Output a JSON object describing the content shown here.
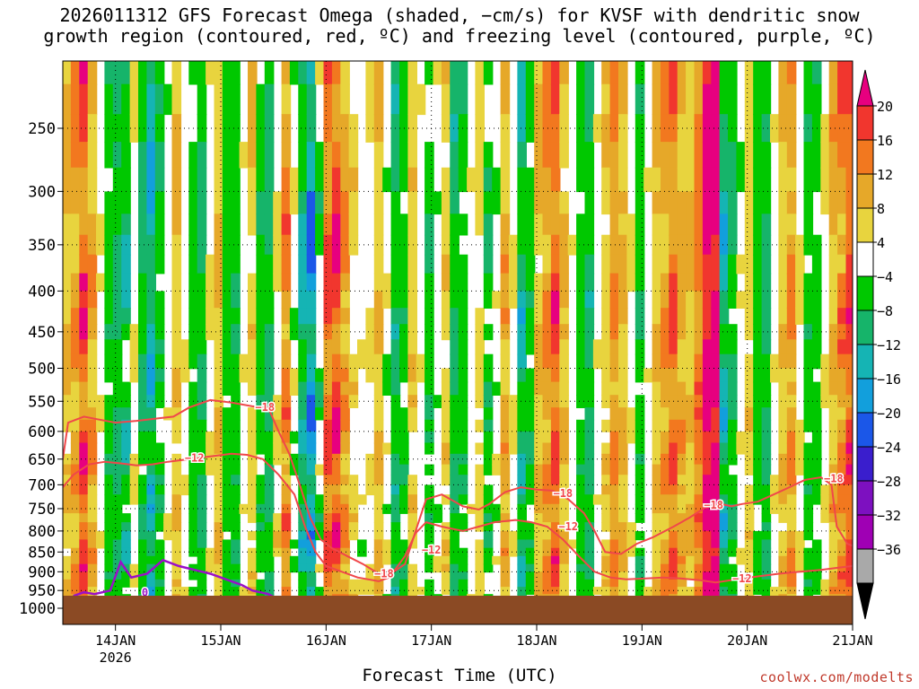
{
  "chart_data": {
    "type": "heatmap",
    "title_line1": "2026011312 GFS Forecast Omega (shaded, −cm/s) for KVSF with dendritic snow",
    "title_line2": "growth region (contoured, red, ºC) and freezing level (contoured, purple, ºC)",
    "xlabel": "Forecast Time (UTC)",
    "credit": "coolwx.com/modelts",
    "ylabel": "",
    "y_axis": {
      "type": "pressure (hPa)",
      "range": [
        1000,
        200
      ],
      "ticks": [
        250,
        300,
        350,
        400,
        450,
        500,
        550,
        600,
        650,
        700,
        750,
        800,
        850,
        900,
        950,
        1000
      ]
    },
    "x_axis": {
      "range_days": [
        13.5,
        21
      ],
      "ticks": [
        {
          "day": 14,
          "label": "14JAN",
          "sublabel": "2026"
        },
        {
          "day": 15,
          "label": "15JAN",
          "sublabel": ""
        },
        {
          "day": 16,
          "label": "16JAN",
          "sublabel": ""
        },
        {
          "day": 17,
          "label": "17JAN",
          "sublabel": ""
        },
        {
          "day": 18,
          "label": "18JAN",
          "sublabel": ""
        },
        {
          "day": 19,
          "label": "19JAN",
          "sublabel": ""
        },
        {
          "day": 20,
          "label": "20JAN",
          "sublabel": ""
        },
        {
          "day": 21,
          "label": "21JAN",
          "sublabel": ""
        }
      ]
    },
    "colorbar": {
      "levels": [
        "20",
        "16",
        "12",
        "8",
        "4",
        "−4",
        "−8",
        "−12",
        "−16",
        "−20",
        "−24",
        "−28",
        "−32",
        "−36"
      ],
      "colors": [
        "#e7007f",
        "#f1362e",
        "#f2781f",
        "#e6a829",
        "#e8d43e",
        "#ffffff",
        "#00c800",
        "#16b46a",
        "#15b4b4",
        "#129fdc",
        "#1b57e8",
        "#3a1ecd",
        "#7d10c0",
        "#9f00b4",
        "#a9a9a9",
        "#000000"
      ]
    },
    "contour_labels": {
      "dgz_cold": "−18",
      "dgz_warm": "−12",
      "freezing": "0"
    },
    "ground_color": "#8b4a24",
    "dgz_color": "#f0474a",
    "freezing_color": "#9a10c8",
    "columns": [
      {
        "t": 13.5,
        "wmin": 2,
        "wmax": 10
      },
      {
        "t": 13.58,
        "wmin": 2,
        "wmax": 14
      },
      {
        "t": 13.66,
        "wmin": 4,
        "wmax": 22
      },
      {
        "t": 13.74,
        "wmin": 2,
        "wmax": 14
      },
      {
        "t": 13.82,
        "wmin": -2,
        "wmax": 4
      },
      {
        "t": 13.9,
        "wmin": -10,
        "wmax": -4
      },
      {
        "t": 13.98,
        "wmin": -14,
        "wmax": -6
      },
      {
        "t": 14.06,
        "wmin": -20,
        "wmax": -4
      },
      {
        "t": 14.14,
        "wmin": -6,
        "wmax": 6
      },
      {
        "t": 14.22,
        "wmin": -14,
        "wmax": -4
      },
      {
        "t": 14.3,
        "wmin": -22,
        "wmax": -8
      },
      {
        "t": 14.38,
        "wmin": -10,
        "wmax": -4
      },
      {
        "t": 14.46,
        "wmin": -8,
        "wmax": 4
      },
      {
        "t": 14.54,
        "wmin": 2,
        "wmax": 10
      },
      {
        "t": 14.62,
        "wmin": -2,
        "wmax": 4
      },
      {
        "t": 14.7,
        "wmin": -8,
        "wmax": -4
      },
      {
        "t": 14.78,
        "wmin": -12,
        "wmax": -6
      },
      {
        "t": 14.86,
        "wmin": -4,
        "wmax": 6
      },
      {
        "t": 14.94,
        "wmin": 2,
        "wmax": 10
      },
      {
        "t": 15.02,
        "wmin": -8,
        "wmax": -4
      },
      {
        "t": 15.1,
        "wmin": -10,
        "wmax": -6
      },
      {
        "t": 15.18,
        "wmin": -6,
        "wmax": 4
      },
      {
        "t": 15.26,
        "wmin": 2,
        "wmax": 8
      },
      {
        "t": 15.34,
        "wmin": -10,
        "wmax": -4
      },
      {
        "t": 15.42,
        "wmin": -14,
        "wmax": -6
      },
      {
        "t": 15.5,
        "wmin": -6,
        "wmax": 8
      },
      {
        "t": 15.58,
        "wmin": 4,
        "wmax": 16
      },
      {
        "t": 15.66,
        "wmin": -10,
        "wmax": 4
      },
      {
        "t": 15.74,
        "wmin": -20,
        "wmax": -6
      },
      {
        "t": 15.82,
        "wmin": -28,
        "wmax": -10
      },
      {
        "t": 15.9,
        "wmin": -14,
        "wmax": 4
      },
      {
        "t": 15.98,
        "wmin": 4,
        "wmax": 20
      },
      {
        "t": 16.06,
        "wmin": 6,
        "wmax": 22
      },
      {
        "t": 16.14,
        "wmin": 4,
        "wmax": 14
      },
      {
        "t": 16.22,
        "wmin": -4,
        "wmax": 8
      },
      {
        "t": 16.3,
        "wmin": -8,
        "wmax": 4
      },
      {
        "t": 16.38,
        "wmin": -6,
        "wmax": 6
      },
      {
        "t": 16.46,
        "wmin": 2,
        "wmax": 10
      },
      {
        "t": 16.54,
        "wmin": -8,
        "wmax": 4
      },
      {
        "t": 16.62,
        "wmin": -14,
        "wmax": -6
      },
      {
        "t": 16.7,
        "wmin": -10,
        "wmax": -4
      },
      {
        "t": 16.78,
        "wmin": 2,
        "wmax": 8
      },
      {
        "t": 16.86,
        "wmin": -6,
        "wmax": 4
      },
      {
        "t": 16.94,
        "wmin": -10,
        "wmax": -4
      },
      {
        "t": 17.02,
        "wmin": -8,
        "wmax": 4
      },
      {
        "t": 17.1,
        "wmin": 2,
        "wmax": 8
      },
      {
        "t": 17.18,
        "wmin": -14,
        "wmax": -6
      },
      {
        "t": 17.26,
        "wmin": -10,
        "wmax": -4
      },
      {
        "t": 17.34,
        "wmin": -6,
        "wmax": 4
      },
      {
        "t": 17.42,
        "wmin": 2,
        "wmax": 6
      },
      {
        "t": 17.5,
        "wmin": -12,
        "wmax": -4
      },
      {
        "t": 17.58,
        "wmin": -8,
        "wmax": 4
      },
      {
        "t": 17.66,
        "wmin": 4,
        "wmax": 12
      },
      {
        "t": 17.74,
        "wmin": -4,
        "wmax": 6
      },
      {
        "t": 17.82,
        "wmin": -20,
        "wmax": -6
      },
      {
        "t": 17.9,
        "wmin": -10,
        "wmax": -4
      },
      {
        "t": 17.98,
        "wmin": 2,
        "wmax": 10
      },
      {
        "t": 18.06,
        "wmin": 4,
        "wmax": 14
      },
      {
        "t": 18.14,
        "wmin": 6,
        "wmax": 20
      },
      {
        "t": 18.22,
        "wmin": 2,
        "wmax": 10
      },
      {
        "t": 18.3,
        "wmin": -6,
        "wmax": 4
      },
      {
        "t": 18.38,
        "wmin": -10,
        "wmax": -4
      },
      {
        "t": 18.46,
        "wmin": -14,
        "wmax": -6
      },
      {
        "t": 18.54,
        "wmin": -6,
        "wmax": 4
      },
      {
        "t": 18.62,
        "wmin": 2,
        "wmax": 8
      },
      {
        "t": 18.7,
        "wmin": 6,
        "wmax": 14
      },
      {
        "t": 18.78,
        "wmin": 4,
        "wmax": 10
      },
      {
        "t": 18.86,
        "wmin": -4,
        "wmax": 6
      },
      {
        "t": 18.94,
        "wmin": -10,
        "wmax": -4
      },
      {
        "t": 19.02,
        "wmin": -6,
        "wmax": 4
      },
      {
        "t": 19.1,
        "wmin": 2,
        "wmax": 10
      },
      {
        "t": 19.18,
        "wmin": 4,
        "wmax": 14
      },
      {
        "t": 19.26,
        "wmin": 6,
        "wmax": 18
      },
      {
        "t": 19.34,
        "wmin": 4,
        "wmax": 12
      },
      {
        "t": 19.42,
        "wmin": 2,
        "wmax": 10
      },
      {
        "t": 19.5,
        "wmin": 8,
        "wmax": 16
      },
      {
        "t": 19.58,
        "wmin": 14,
        "wmax": 24
      },
      {
        "t": 19.66,
        "wmin": 16,
        "wmax": 26
      },
      {
        "t": 19.74,
        "wmin": -24,
        "wmax": -6
      },
      {
        "t": 19.82,
        "wmin": -14,
        "wmax": -4
      },
      {
        "t": 19.9,
        "wmin": -8,
        "wmax": 4
      },
      {
        "t": 19.98,
        "wmin": 2,
        "wmax": 8
      },
      {
        "t": 20.06,
        "wmin": -8,
        "wmax": -4
      },
      {
        "t": 20.14,
        "wmin": -12,
        "wmax": -6
      },
      {
        "t": 20.22,
        "wmin": -6,
        "wmax": 4
      },
      {
        "t": 20.3,
        "wmin": 2,
        "wmax": 10
      },
      {
        "t": 20.38,
        "wmin": 4,
        "wmax": 14
      },
      {
        "t": 20.46,
        "wmin": -4,
        "wmax": 6
      },
      {
        "t": 20.54,
        "wmin": -10,
        "wmax": -4
      },
      {
        "t": 20.62,
        "wmin": -8,
        "wmax": -4
      },
      {
        "t": 20.7,
        "wmin": -4,
        "wmax": 6
      },
      {
        "t": 20.78,
        "wmin": 2,
        "wmax": 12
      },
      {
        "t": 20.86,
        "wmin": 4,
        "wmax": 16
      },
      {
        "t": 20.94,
        "wmin": 8,
        "wmax": 20
      }
    ],
    "dgz_minus18": [
      [
        13.5,
        650
      ],
      [
        13.55,
        585
      ],
      [
        13.7,
        575
      ],
      [
        13.85,
        580
      ],
      [
        14.0,
        585
      ],
      [
        14.2,
        582
      ],
      [
        14.4,
        578
      ],
      [
        14.55,
        575
      ],
      [
        14.7,
        560
      ],
      [
        14.9,
        548
      ],
      [
        15.1,
        552
      ],
      [
        15.3,
        558
      ],
      [
        15.45,
        560
      ],
      [
        15.55,
        600
      ],
      [
        15.65,
        640
      ],
      [
        15.75,
        700
      ],
      [
        15.85,
        770
      ],
      [
        15.95,
        820
      ],
      [
        16.05,
        840
      ],
      [
        16.2,
        860
      ],
      [
        16.35,
        880
      ],
      [
        16.5,
        905
      ],
      [
        16.6,
        908
      ],
      [
        16.75,
        880
      ],
      [
        16.85,
        800
      ],
      [
        16.95,
        730
      ],
      [
        17.1,
        720
      ],
      [
        17.3,
        745
      ],
      [
        17.45,
        752
      ],
      [
        17.55,
        740
      ],
      [
        17.7,
        715
      ],
      [
        17.85,
        705
      ],
      [
        18.0,
        710
      ],
      [
        18.15,
        712
      ],
      [
        18.3,
        730
      ],
      [
        18.45,
        760
      ],
      [
        18.55,
        800
      ],
      [
        18.65,
        850
      ],
      [
        18.8,
        855
      ],
      [
        18.95,
        830
      ],
      [
        19.1,
        815
      ],
      [
        19.3,
        790
      ],
      [
        19.45,
        770
      ],
      [
        19.6,
        748
      ],
      [
        19.75,
        740
      ],
      [
        19.85,
        745
      ],
      [
        19.95,
        740
      ],
      [
        20.1,
        735
      ],
      [
        20.25,
        720
      ],
      [
        20.4,
        705
      ],
      [
        20.55,
        690
      ],
      [
        20.7,
        685
      ],
      [
        20.8,
        700
      ],
      [
        20.85,
        790
      ],
      [
        20.95,
        830
      ],
      [
        21.0,
        835
      ]
    ],
    "dgz_minus12": [
      [
        13.5,
        705
      ],
      [
        13.6,
        680
      ],
      [
        13.75,
        660
      ],
      [
        13.9,
        655
      ],
      [
        14.05,
        658
      ],
      [
        14.2,
        662
      ],
      [
        14.35,
        660
      ],
      [
        14.5,
        655
      ],
      [
        14.7,
        650
      ],
      [
        14.9,
        645
      ],
      [
        15.1,
        640
      ],
      [
        15.25,
        642
      ],
      [
        15.4,
        650
      ],
      [
        15.55,
        680
      ],
      [
        15.7,
        720
      ],
      [
        15.8,
        790
      ],
      [
        15.9,
        850
      ],
      [
        16.0,
        885
      ],
      [
        16.15,
        900
      ],
      [
        16.3,
        915
      ],
      [
        16.5,
        925
      ],
      [
        16.6,
        915
      ],
      [
        16.75,
        860
      ],
      [
        16.85,
        805
      ],
      [
        16.95,
        780
      ],
      [
        17.1,
        790
      ],
      [
        17.3,
        800
      ],
      [
        17.45,
        790
      ],
      [
        17.6,
        780
      ],
      [
        17.8,
        775
      ],
      [
        17.95,
        780
      ],
      [
        18.1,
        790
      ],
      [
        18.25,
        820
      ],
      [
        18.4,
        860
      ],
      [
        18.55,
        900
      ],
      [
        18.7,
        915
      ],
      [
        18.85,
        920
      ],
      [
        19.0,
        918
      ],
      [
        19.2,
        915
      ],
      [
        19.35,
        917
      ],
      [
        19.55,
        922
      ],
      [
        19.7,
        928
      ],
      [
        19.9,
        920
      ],
      [
        20.1,
        912
      ],
      [
        20.3,
        905
      ],
      [
        20.5,
        900
      ],
      [
        20.7,
        895
      ],
      [
        20.85,
        890
      ],
      [
        21.0,
        885
      ]
    ],
    "freezing0": [
      [
        13.6,
        965
      ],
      [
        13.7,
        955
      ],
      [
        13.8,
        960
      ],
      [
        13.95,
        950
      ],
      [
        14.05,
        875
      ],
      [
        14.15,
        915
      ],
      [
        14.3,
        905
      ],
      [
        14.45,
        870
      ],
      [
        14.6,
        885
      ],
      [
        14.75,
        895
      ],
      [
        14.9,
        905
      ],
      [
        15.05,
        920
      ],
      [
        15.2,
        935
      ],
      [
        15.3,
        950
      ],
      [
        15.45,
        960
      ],
      [
        15.55,
        975
      ]
    ]
  }
}
